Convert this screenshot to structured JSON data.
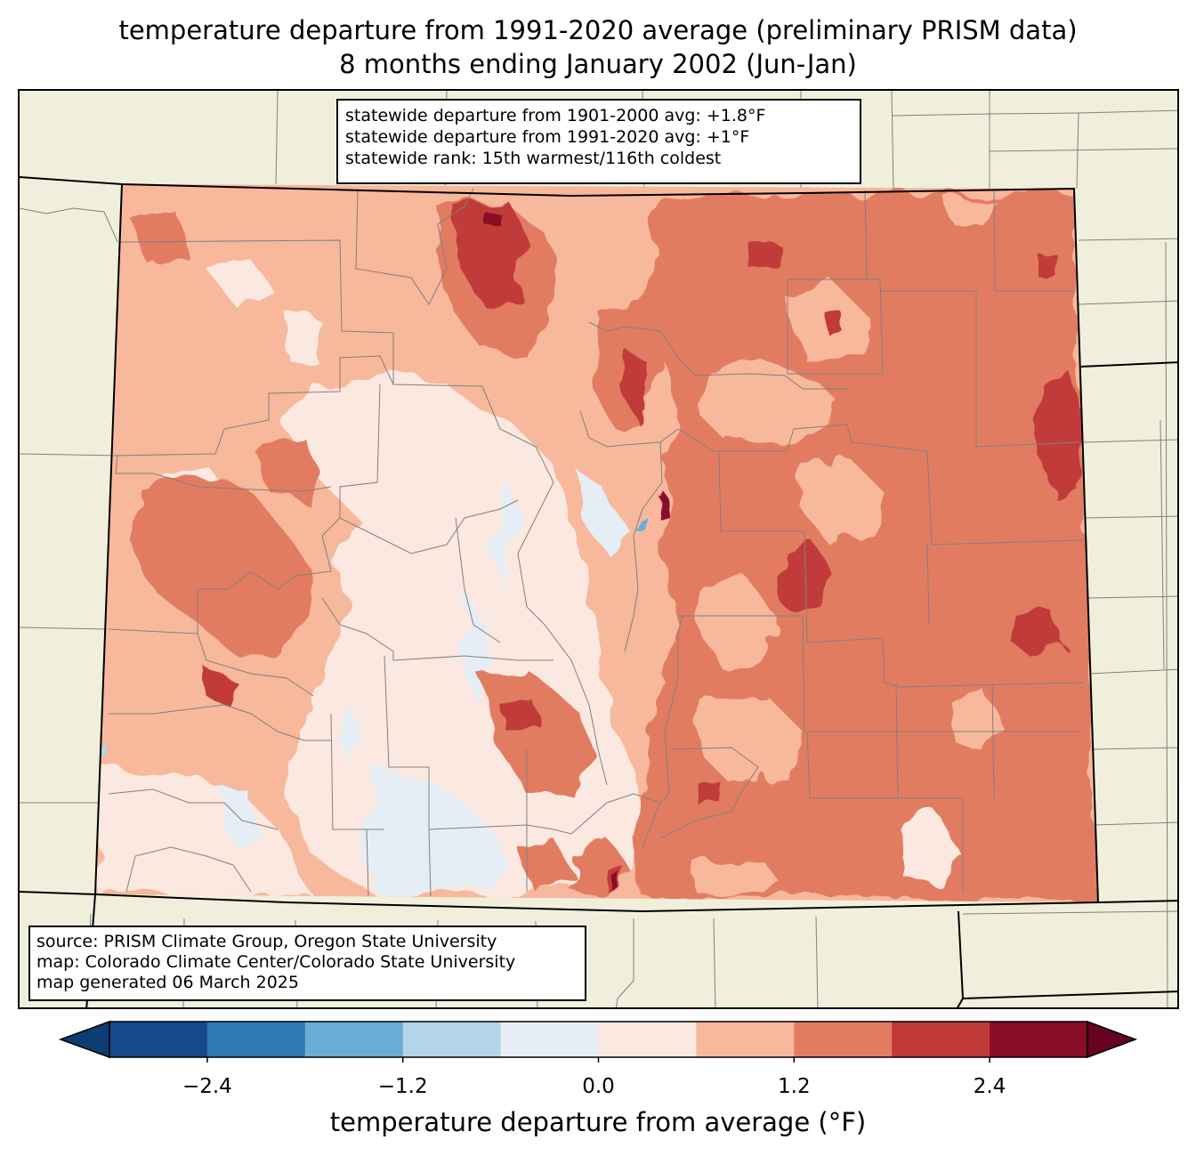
{
  "title": {
    "line1": "temperature departure from 1991-2020 average (preliminary PRISM data)",
    "line2": "8 months ending January 2002 (Jun-Jan)"
  },
  "stats": {
    "line1": "statewide departure from 1901-2000 avg: +1.8°F",
    "line2": "statewide departure from 1991-2020 avg: +1°F",
    "line3": "statewide rank: 15th warmest/116th coldest"
  },
  "source": {
    "line1": "source: PRISM Climate Group, Oregon State University",
    "line2": "map: Colorado Climate Center/Colorado State University",
    "line3": "map generated 06 March 2025"
  },
  "colorbar": {
    "label": "temperature departure from average (°F)",
    "ticks": [
      "−2.4",
      "−1.2",
      "0.0",
      "1.2",
      "2.4"
    ],
    "bin_edges": [
      -3.0,
      -2.4,
      -1.8,
      -1.2,
      -0.6,
      0.0,
      0.6,
      1.2,
      1.8,
      2.4,
      3.0
    ],
    "colors": [
      "#0e3d74",
      "#154a8a",
      "#2f79b5",
      "#6aadd5",
      "#b3d5e8",
      "#e6eef5",
      "#fbe8e0",
      "#f7b89c",
      "#e27c61",
      "#c13a3a",
      "#8a0c26",
      "#650320"
    ]
  },
  "map": {
    "land_color": "#efefdc",
    "county_line_color": "#808080",
    "state_line_color": "#000000"
  }
}
